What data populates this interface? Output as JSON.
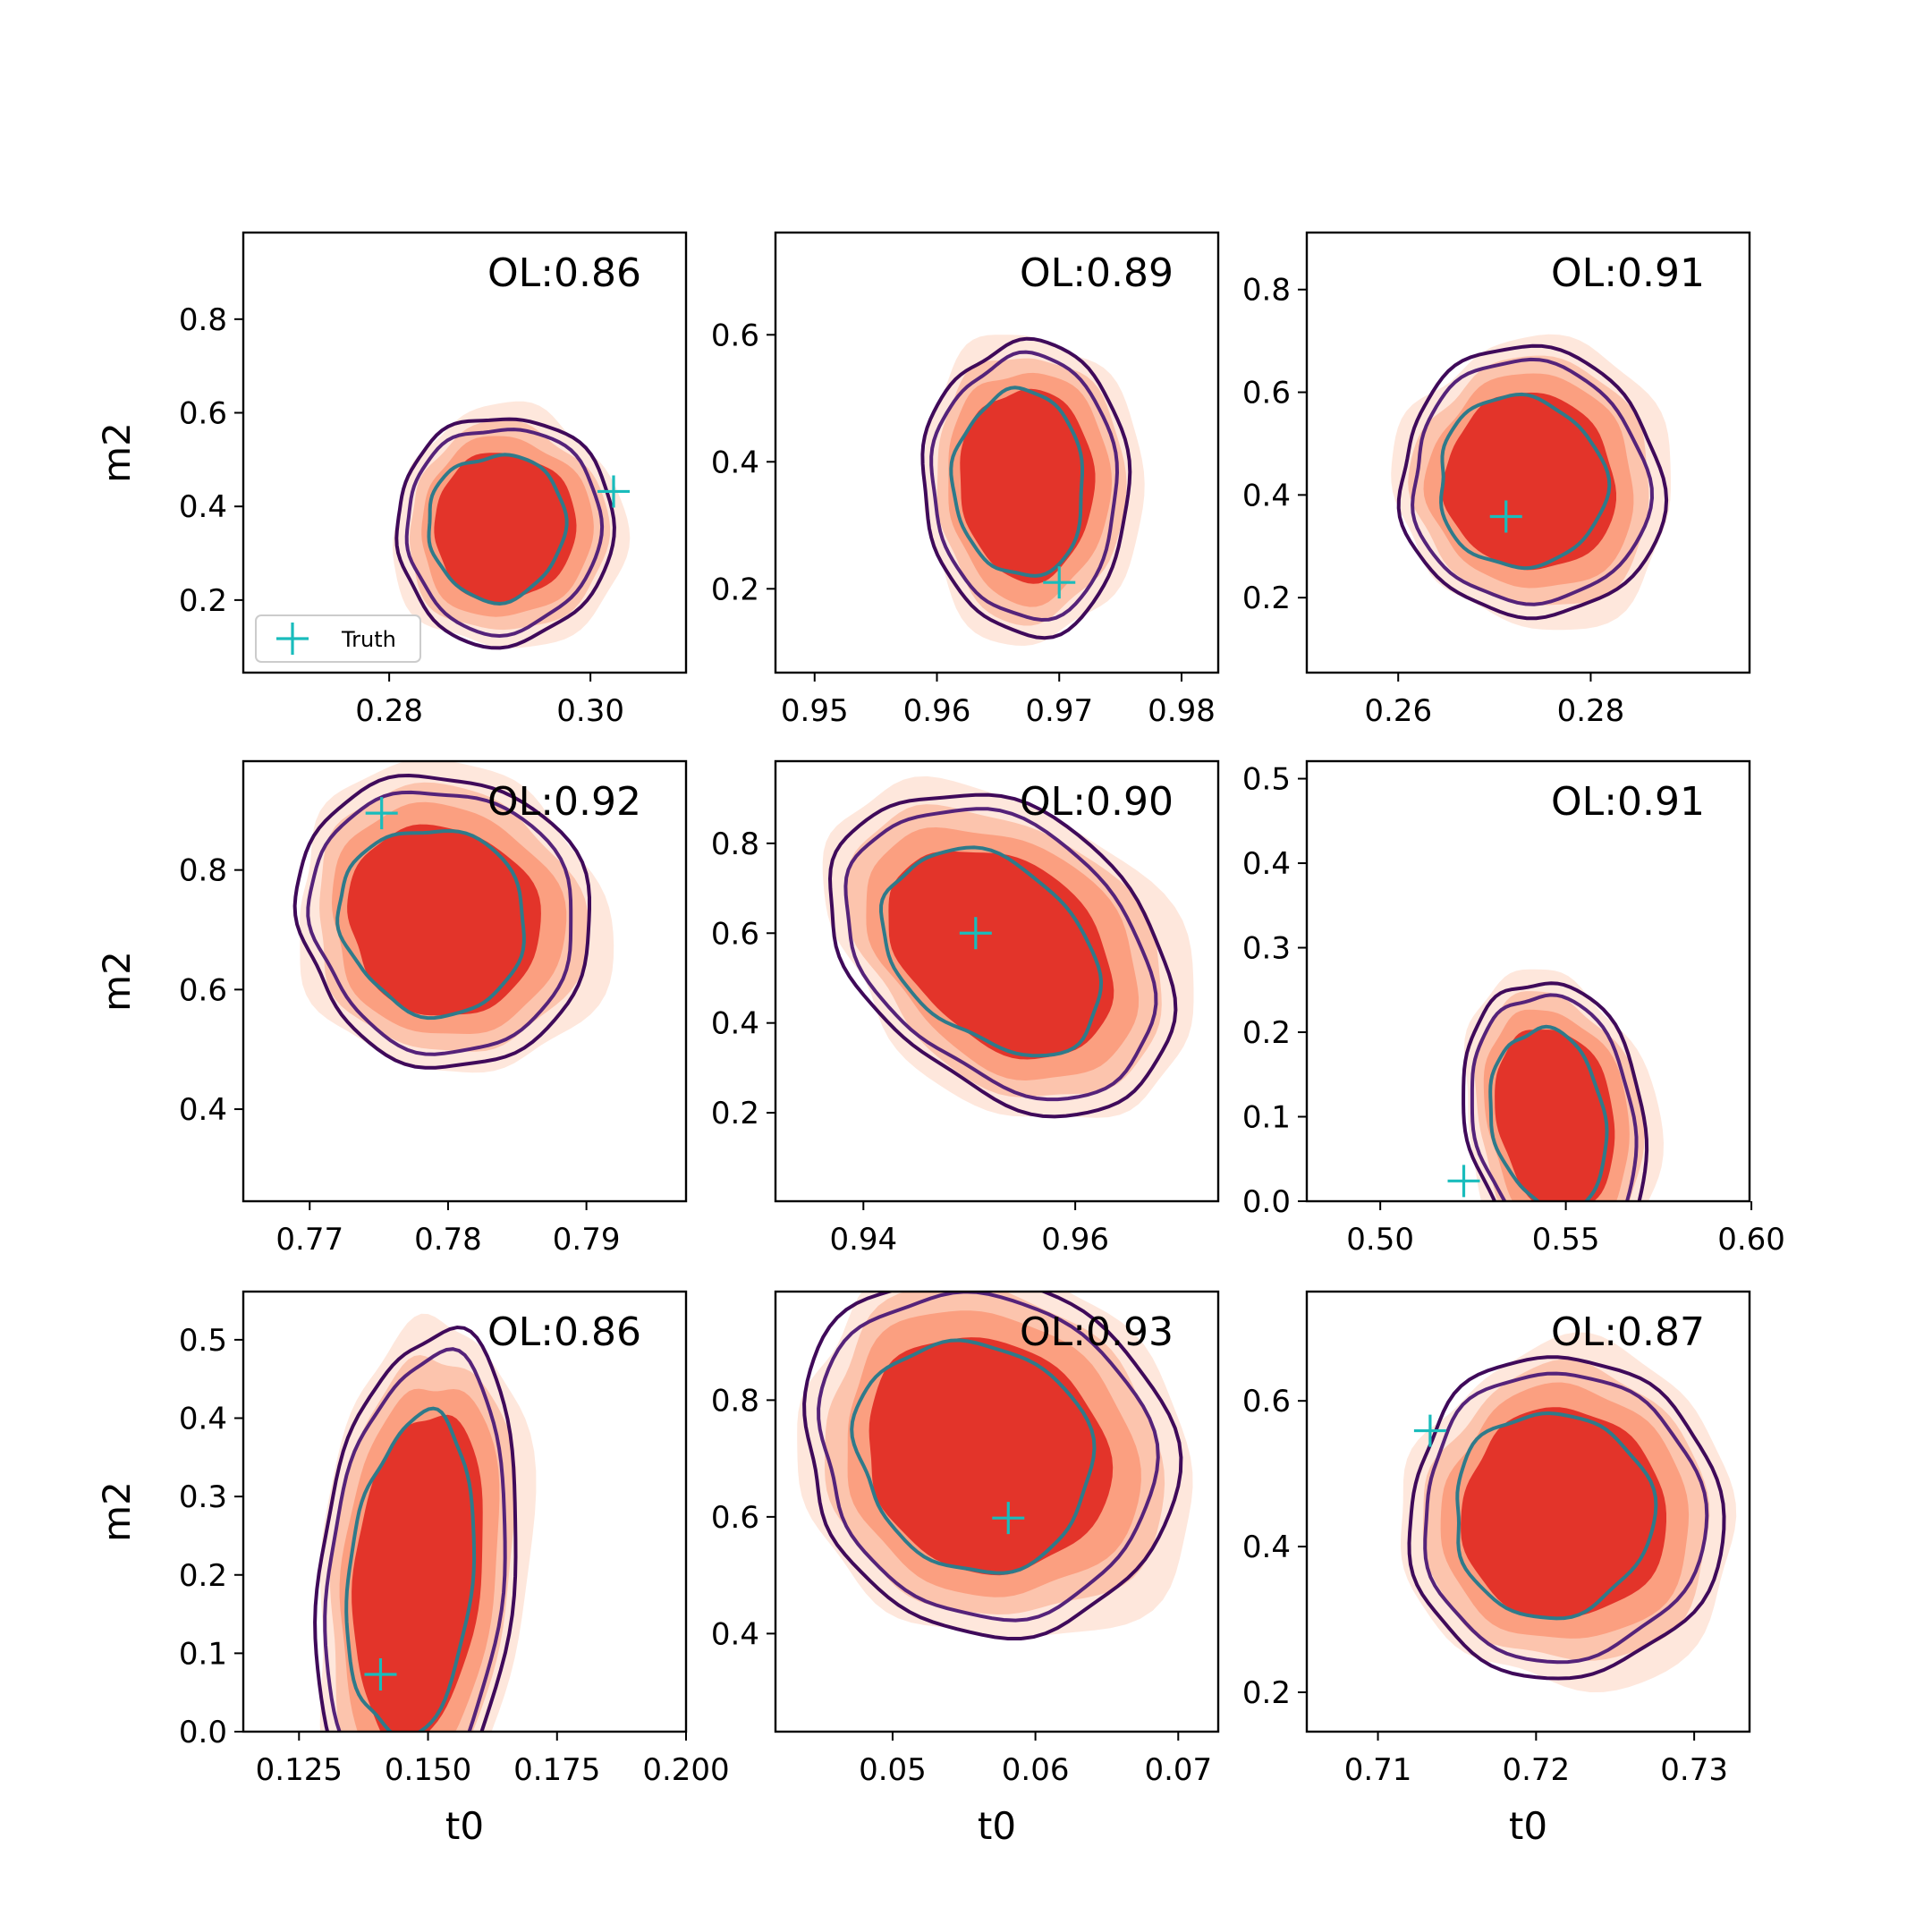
{
  "colors": {
    "fill_lightest": "#fee7dc",
    "fill_light": "#fcc4ad",
    "fill_mid": "#fb9f80",
    "fill_core": "#e3342a",
    "line_outer": "#3f0a5a",
    "line_mid": "#55237a",
    "line_inner": "#2f7a8a",
    "truth": "#19bcbc",
    "axis": "#000000"
  },
  "chart_data": {
    "type": "contour-grid",
    "xlabel": "t0",
    "ylabel": "m2",
    "legend": {
      "label": "Truth",
      "placement": "lower-left of first panel"
    },
    "panels": [
      {
        "label": "OL:0.86",
        "xlim": [
          0.2655,
          0.3095
        ],
        "ylim": [
          0.045,
          0.985
        ],
        "xticks": [
          0.28,
          0.3
        ],
        "xtick_labels": [
          "0.28",
          "0.30"
        ],
        "yticks": [
          0.2,
          0.4,
          0.6,
          0.8
        ],
        "ytick_labels": [
          "0.2",
          "0.4",
          "0.6",
          "0.8"
        ],
        "truth": [
          0.3023,
          0.432
        ],
        "center": [
          0.2904,
          0.368
        ],
        "spread": [
          0.0074,
          0.168
        ],
        "tilt": 0.05
      },
      {
        "label": "OL:0.89",
        "xlim": [
          0.9468,
          0.983
        ],
        "ylim": [
          0.068,
          0.761
        ],
        "xticks": [
          0.95,
          0.96,
          0.97,
          0.98
        ],
        "xtick_labels": [
          "0.95",
          "0.96",
          "0.97",
          "0.98"
        ],
        "yticks": [
          0.2,
          0.4,
          0.6
        ],
        "ytick_labels": [
          "0.2",
          "0.4",
          "0.6"
        ],
        "truth": [
          0.97,
          0.21
        ],
        "center": [
          0.9665,
          0.375
        ],
        "spread": [
          0.0058,
          0.158
        ],
        "tilt": -0.05
      },
      {
        "label": "OL:0.91",
        "xlim": [
          0.2505,
          0.2965
        ],
        "ylim": [
          0.054,
          0.911
        ],
        "xticks": [
          0.26,
          0.28
        ],
        "xtick_labels": [
          "0.26",
          "0.28"
        ],
        "yticks": [
          0.2,
          0.4,
          0.6,
          0.8
        ],
        "ytick_labels": [
          "0.2",
          "0.4",
          "0.6",
          "0.8"
        ],
        "truth": [
          0.2712,
          0.358
        ],
        "center": [
          0.2722,
          0.428
        ],
        "spread": [
          0.0093,
          0.182
        ],
        "tilt": -0.45
      },
      {
        "label": "OL:0.92",
        "xlim": [
          0.7652,
          0.7972
        ],
        "ylim": [
          0.246,
          0.982
        ],
        "xticks": [
          0.77,
          0.78,
          0.79
        ],
        "xtick_labels": [
          "0.77",
          "0.78",
          "0.79"
        ],
        "yticks": [
          0.4,
          0.6,
          0.8
        ],
        "ytick_labels": [
          "0.4",
          "0.6",
          "0.8"
        ],
        "truth": [
          0.7752,
          0.895
        ],
        "center": [
          0.7785,
          0.712
        ],
        "spread": [
          0.007,
          0.175
        ],
        "tilt": -0.82
      },
      {
        "label": "OL:0.90",
        "xlim": [
          0.9317,
          0.9735
        ],
        "ylim": [
          0.003,
          0.983
        ],
        "xticks": [
          0.94,
          0.96
        ],
        "xtick_labels": [
          "0.94",
          "0.96"
        ],
        "yticks": [
          0.2,
          0.4,
          0.6,
          0.8
        ],
        "ytick_labels": [
          "0.2",
          "0.4",
          "0.6",
          "0.8"
        ],
        "truth": [
          0.9506,
          0.6
        ],
        "center": [
          0.9515,
          0.555
        ],
        "spread": [
          0.0087,
          0.295
        ],
        "tilt": -0.9
      },
      {
        "label": "OL:0.91",
        "xlim": [
          0.4802,
          0.5995
        ],
        "ylim": [
          0.0,
          0.5207
        ],
        "xticks": [
          0.5,
          0.55,
          0.6
        ],
        "xtick_labels": [
          "0.50",
          "0.55",
          "0.60"
        ],
        "yticks": [
          0.0,
          0.1,
          0.2,
          0.3,
          0.4,
          0.5
        ],
        "ytick_labels": [
          "0.0",
          "0.1",
          "0.2",
          "0.3",
          "0.4",
          "0.5"
        ],
        "truth": [
          0.5225,
          0.024
        ],
        "center": [
          0.5445,
          0.102
        ],
        "spread": [
          0.0165,
          0.118
        ],
        "tilt": -0.2
      },
      {
        "label": "OL:0.86",
        "xlim": [
          0.1142,
          0.2
        ],
        "ylim": [
          0.0,
          0.5615
        ],
        "xticks": [
          0.125,
          0.15,
          0.175,
          0.2
        ],
        "xtick_labels": [
          "0.125",
          "0.150",
          "0.175",
          "0.200"
        ],
        "yticks": [
          0.0,
          0.1,
          0.2,
          0.3,
          0.4,
          0.5
        ],
        "ytick_labels": [
          "0.0",
          "0.1",
          "0.2",
          "0.3",
          "0.4",
          "0.5"
        ],
        "truth": [
          0.1408,
          0.073
        ],
        "center": [
          0.1465,
          0.212
        ],
        "spread": [
          0.013,
          0.222
        ],
        "tilt": 0.1
      },
      {
        "label": "OL:0.93",
        "xlim": [
          0.0418,
          0.0728
        ],
        "ylim": [
          0.232,
          0.986
        ],
        "xticks": [
          0.05,
          0.06,
          0.07
        ],
        "xtick_labels": [
          "0.05",
          "0.06",
          "0.07"
        ],
        "yticks": [
          0.4,
          0.6,
          0.8
        ],
        "ytick_labels": [
          "0.4",
          "0.6",
          "0.8"
        ],
        "truth": [
          0.0581,
          0.598
        ],
        "center": [
          0.0552,
          0.7
        ],
        "spread": [
          0.0083,
          0.228
        ],
        "tilt": -0.9
      },
      {
        "label": "OL:0.87",
        "xlim": [
          0.7055,
          0.7335
        ],
        "ylim": [
          0.146,
          0.75
        ],
        "xticks": [
          0.71,
          0.72,
          0.73
        ],
        "xtick_labels": [
          "0.71",
          "0.72",
          "0.73"
        ],
        "yticks": [
          0.2,
          0.4,
          0.6
        ],
        "ytick_labels": [
          "0.2",
          "0.4",
          "0.6"
        ],
        "truth": [
          0.7133,
          0.559
        ],
        "center": [
          0.7207,
          0.452
        ],
        "spread": [
          0.0068,
          0.152
        ],
        "tilt": -0.1
      }
    ]
  }
}
